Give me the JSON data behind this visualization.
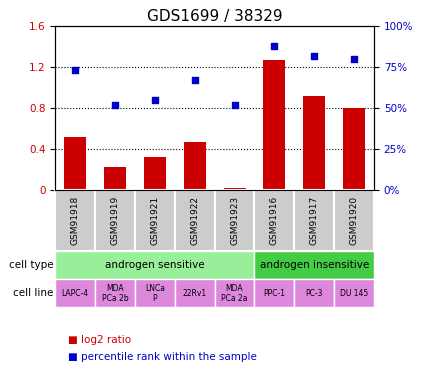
{
  "title": "GDS1699 / 38329",
  "samples": [
    "GSM91918",
    "GSM91919",
    "GSM91921",
    "GSM91922",
    "GSM91923",
    "GSM91916",
    "GSM91917",
    "GSM91920"
  ],
  "log2_ratio": [
    0.52,
    0.22,
    0.32,
    0.47,
    0.02,
    1.27,
    0.92,
    0.8
  ],
  "percentile_rank": [
    73,
    52,
    55,
    67,
    52,
    88,
    82,
    80
  ],
  "bar_color": "#cc0000",
  "dot_color": "#0000cc",
  "cell_type_groups": [
    {
      "label": "androgen sensitive",
      "start": 0,
      "end": 5,
      "color": "#99ee99"
    },
    {
      "label": "androgen insensitive",
      "start": 5,
      "end": 8,
      "color": "#44cc44"
    }
  ],
  "cell_lines": [
    "LAPC-4",
    "MDA\nPCa 2b",
    "LNCa\nP",
    "22Rv1",
    "MDA\nPCa 2a",
    "PPC-1",
    "PC-3",
    "DU 145"
  ],
  "cell_line_color": "#dd88dd",
  "ylabel_left": "",
  "ylabel_right": "",
  "ylim_left": [
    0,
    1.6
  ],
  "ylim_right": [
    0,
    100
  ],
  "yticks_left": [
    0,
    0.4,
    0.8,
    1.2,
    1.6
  ],
  "ytick_labels_left": [
    "0",
    "0.4",
    "0.8",
    "1.2",
    "1.6"
  ],
  "yticks_right": [
    0,
    25,
    50,
    75,
    100
  ],
  "ytick_labels_right": [
    "0%",
    "25%",
    "50%",
    "75%",
    "100%"
  ],
  "hlines": [
    0.4,
    0.8,
    1.2
  ],
  "legend_items": [
    {
      "label": "log2 ratio",
      "color": "#cc0000",
      "marker": "s"
    },
    {
      "label": "percentile rank within the sample",
      "color": "#0000cc",
      "marker": "s"
    }
  ],
  "cell_type_label": "cell type",
  "cell_line_label": "cell line",
  "title_fontsize": 11,
  "tick_fontsize": 7.5,
  "bar_width": 0.55
}
